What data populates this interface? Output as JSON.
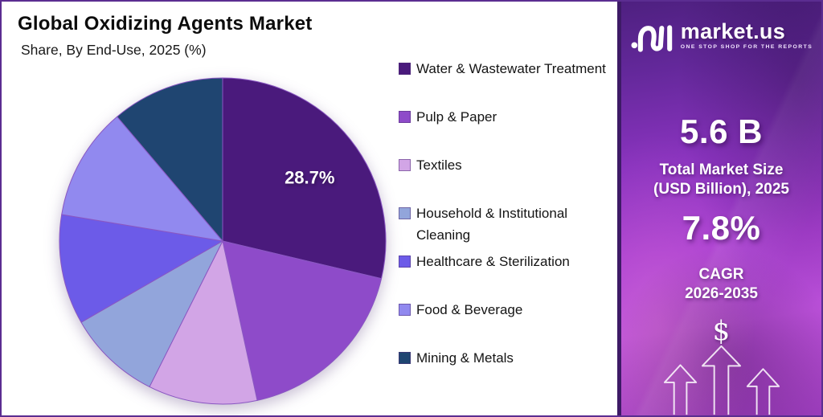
{
  "header": {
    "title": "Global Oxidizing Agents Market",
    "subtitle": "Share, By End-Use, 2025 (%)"
  },
  "chart_data": {
    "type": "pie",
    "title": "Global Oxidizing Agents Market",
    "subtitle": "Share, By End-Use, 2025 (%)",
    "unit": "%",
    "start_angle_deg": 0,
    "direction": "clockwise",
    "legend_position": "right",
    "slice_border_color": "#8a57c2",
    "slices": [
      {
        "label": "Water & Wastewater Treatment",
        "value": 28.7,
        "color": "#4a1a7c",
        "data_label": "28.7%"
      },
      {
        "label": "Pulp & Paper",
        "value": 17.9,
        "color": "#8e4bc9",
        "estimated": true
      },
      {
        "label": "Textiles",
        "value": 10.8,
        "color": "#d2a5e6",
        "estimated": true
      },
      {
        "label": "Household & Institutional Cleaning",
        "value": 9.3,
        "color": "#92a5db",
        "estimated": true
      },
      {
        "label": "Healthcare & Sterilization",
        "value": 10.9,
        "color": "#6c5be8",
        "estimated": true
      },
      {
        "label": "Food & Beverage",
        "value": 11.2,
        "color": "#9189ef",
        "estimated": true
      },
      {
        "label": "Mining & Metals",
        "value": 11.2,
        "color": "#1f4571",
        "estimated": true
      }
    ]
  },
  "panel": {
    "brand": {
      "name": "market.us",
      "tagline": "ONE STOP SHOP FOR THE REPORTS"
    },
    "market_size": {
      "value": "5.6 B",
      "label_line1": "Total Market Size",
      "label_line2": "(USD Billion), 2025"
    },
    "cagr": {
      "value": "7.8%",
      "label_line1": "CAGR",
      "label_line2": "2026-2035"
    },
    "dollar_icon": "$",
    "accent_color": "#a93fd2",
    "border_color": "#5b2d91"
  }
}
